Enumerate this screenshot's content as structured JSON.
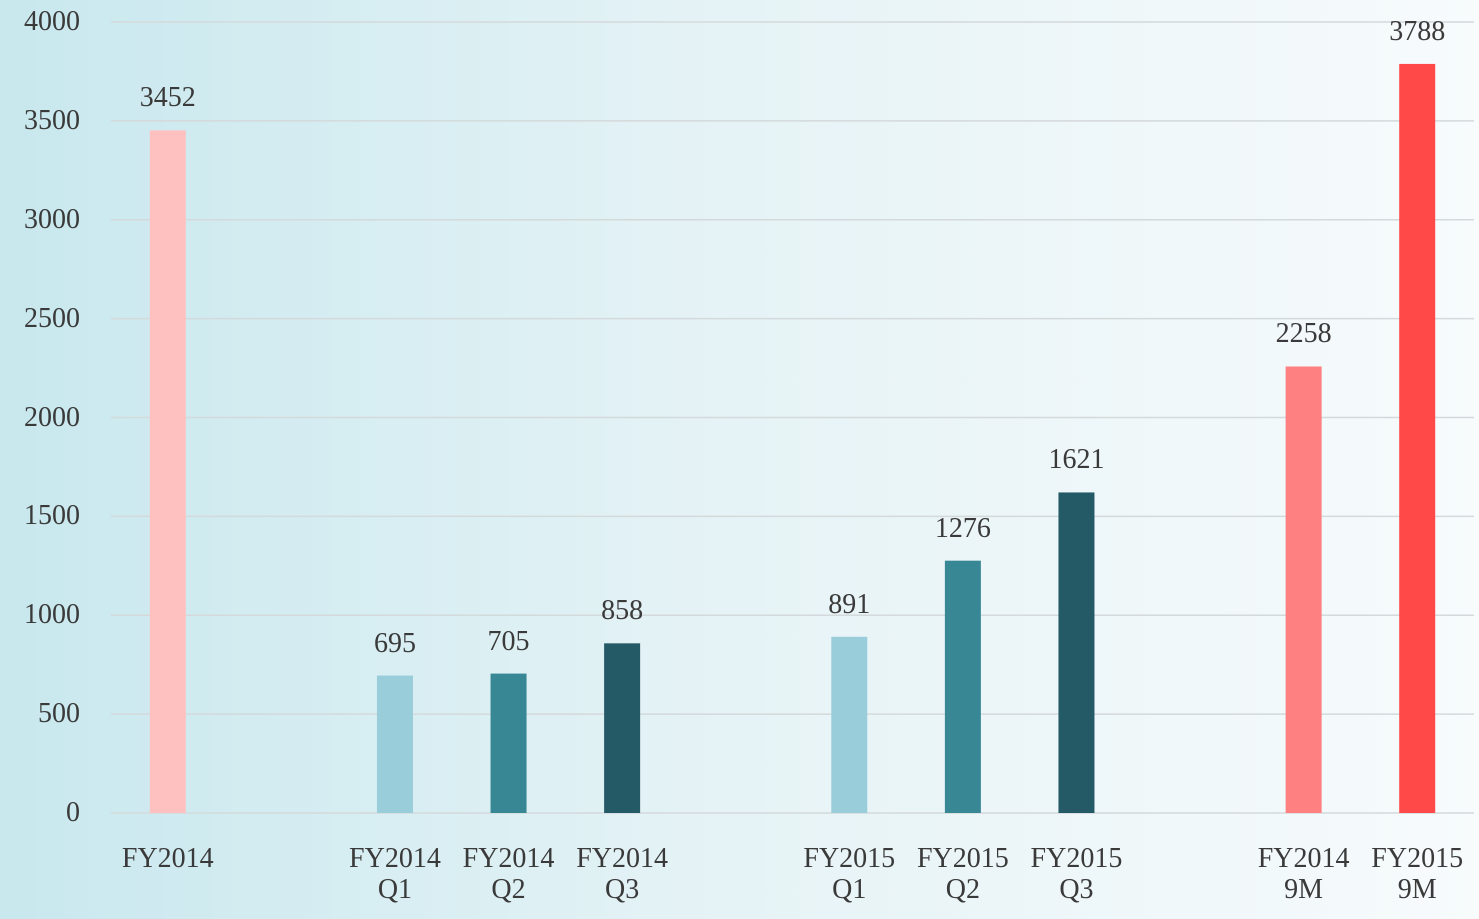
{
  "chart_data": {
    "type": "bar",
    "categories": [
      "FY2014",
      null,
      "FY2014 Q1",
      "FY2014 Q2",
      "FY2014 Q3",
      null,
      "FY2015 Q1",
      "FY2015 Q2",
      "FY2015 Q3",
      null,
      "FY2014 9M",
      "FY2015 9M"
    ],
    "values": [
      3452,
      null,
      695,
      705,
      858,
      null,
      891,
      1276,
      1621,
      null,
      2258,
      3788
    ],
    "colors": [
      "#ffc0c0",
      null,
      "#99cdd9",
      "#388795",
      "#235a65",
      null,
      "#99cdd9",
      "#388795",
      "#235a65",
      null,
      "#ff8080",
      "#ff4848"
    ],
    "ylim": [
      0,
      4000
    ],
    "yticks": [
      0,
      500,
      1000,
      1500,
      2000,
      2500,
      3000,
      3500,
      4000
    ],
    "grid": true
  }
}
